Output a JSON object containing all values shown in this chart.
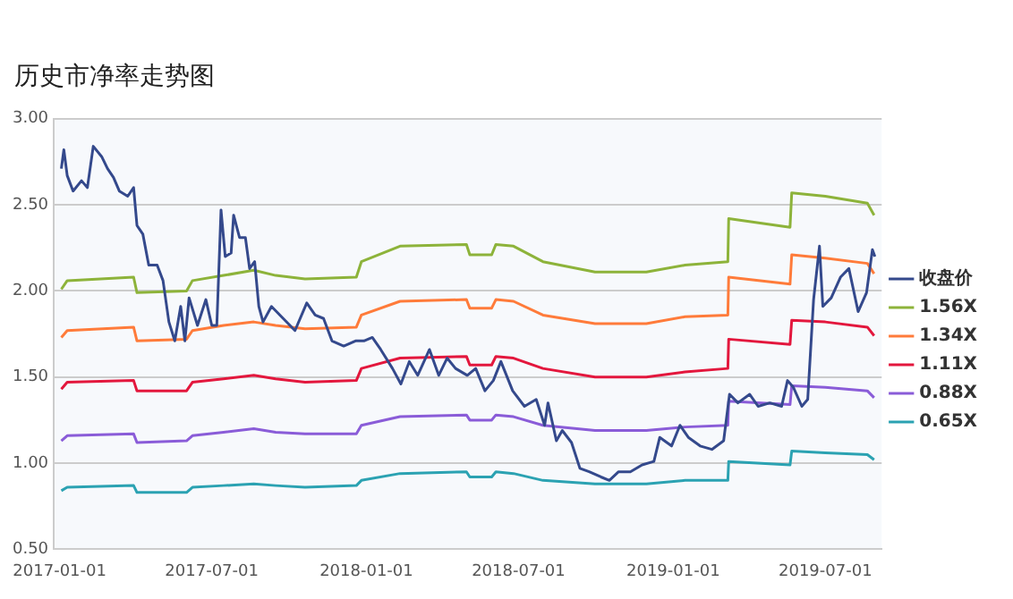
{
  "chart_data": {
    "type": "line",
    "title": "历史市净率走势图",
    "xlim": [
      "2016-12-25",
      "2019-09-06"
    ],
    "xticks": [
      "2017-01-01",
      "2017-07-01",
      "2018-01-01",
      "2018-07-01",
      "2019-01-01",
      "2019-07-01"
    ],
    "ylim": [
      0.5,
      3
    ],
    "yticks": [
      {
        "value": 0.5,
        "label": "0.50"
      },
      {
        "value": 1,
        "label": "1.00"
      },
      {
        "value": 1.5,
        "label": "1.50"
      },
      {
        "value": 2,
        "label": "2.00"
      },
      {
        "value": 2.5,
        "label": "2.50"
      },
      {
        "value": 3,
        "label": "3.00"
      }
    ],
    "grid": "y",
    "legend": "right",
    "marker": "none",
    "line_style": "solid",
    "series": [
      {
        "name": "收盘价",
        "color": "#34498c",
        "x": [
          "2017-01-03",
          "2017-01-06",
          "2017-01-10",
          "2017-01-17",
          "2017-01-27",
          "2017-02-03",
          "2017-02-10",
          "2017-02-20",
          "2017-02-27",
          "2017-03-06",
          "2017-03-13",
          "2017-03-23",
          "2017-03-30",
          "2017-04-03",
          "2017-04-10",
          "2017-04-17",
          "2017-04-27",
          "2017-05-04",
          "2017-05-11",
          "2017-05-18",
          "2017-05-25",
          "2017-05-30",
          "2017-06-04",
          "2017-06-14",
          "2017-06-24",
          "2017-07-01",
          "2017-07-07",
          "2017-07-12",
          "2017-07-17",
          "2017-07-24",
          "2017-07-27",
          "2017-08-03",
          "2017-08-10",
          "2017-08-15",
          "2017-08-21",
          "2017-08-26",
          "2017-08-31",
          "2017-09-10",
          "2017-09-24",
          "2017-10-08",
          "2017-10-22",
          "2017-11-01",
          "2017-11-11",
          "2017-11-21",
          "2017-12-05",
          "2017-12-19",
          "2017-12-29",
          "2018-01-08",
          "2018-01-18",
          "2018-02-01",
          "2018-02-11",
          "2018-02-21",
          "2018-03-03",
          "2018-03-17",
          "2018-03-28",
          "2018-04-07",
          "2018-04-17",
          "2018-05-01",
          "2018-05-11",
          "2018-05-22",
          "2018-06-01",
          "2018-06-10",
          "2018-06-24",
          "2018-07-08",
          "2018-07-22",
          "2018-08-01",
          "2018-08-05",
          "2018-08-15",
          "2018-08-22",
          "2018-09-02",
          "2018-09-12",
          "2018-09-23",
          "2018-10-07",
          "2018-10-17",
          "2018-10-28",
          "2018-11-11",
          "2018-11-25",
          "2018-12-09",
          "2018-12-16",
          "2018-12-30",
          "2019-01-09",
          "2019-01-19",
          "2019-02-02",
          "2019-02-16",
          "2019-03-02",
          "2019-03-09",
          "2019-03-19",
          "2019-04-02",
          "2019-04-12",
          "2019-04-26",
          "2019-05-10",
          "2019-05-17",
          "2019-05-24",
          "2019-06-03",
          "2019-06-10",
          "2019-06-17",
          "2019-06-24",
          "2019-06-28",
          "2019-07-08",
          "2019-07-19",
          "2019-07-29",
          "2019-08-09",
          "2019-08-19",
          "2019-08-26",
          "2019-08-29"
        ],
        "values": [
          2.71,
          2.82,
          2.67,
          2.58,
          2.64,
          2.6,
          2.84,
          2.78,
          2.71,
          2.66,
          2.58,
          2.55,
          2.6,
          2.38,
          2.33,
          2.15,
          2.15,
          2.06,
          1.82,
          1.71,
          1.91,
          1.71,
          1.96,
          1.8,
          1.95,
          1.8,
          1.8,
          2.47,
          2.2,
          2.22,
          2.44,
          2.31,
          2.31,
          2.13,
          2.17,
          1.91,
          1.82,
          1.91,
          1.84,
          1.77,
          1.93,
          1.86,
          1.84,
          1.71,
          1.68,
          1.71,
          1.71,
          1.73,
          1.66,
          1.55,
          1.46,
          1.59,
          1.51,
          1.66,
          1.51,
          1.61,
          1.55,
          1.51,
          1.55,
          1.42,
          1.48,
          1.59,
          1.42,
          1.33,
          1.37,
          1.22,
          1.35,
          1.13,
          1.19,
          1.12,
          0.97,
          0.95,
          0.92,
          0.9,
          0.95,
          0.95,
          0.99,
          1.01,
          1.15,
          1.1,
          1.22,
          1.15,
          1.1,
          1.08,
          1.13,
          1.4,
          1.35,
          1.4,
          1.33,
          1.35,
          1.33,
          1.48,
          1.44,
          1.33,
          1.37,
          1.95,
          2.26,
          1.91,
          1.96,
          2.08,
          2.13,
          1.88,
          1.99,
          2.24,
          2.2
        ]
      },
      {
        "name": "1.56X",
        "color": "#8db33a",
        "x": [
          "2017-01-03",
          "2017-01-10",
          "2017-03-30",
          "2017-04-03",
          "2017-06-01",
          "2017-06-08",
          "2017-07-15",
          "2017-08-20",
          "2017-09-15",
          "2017-10-20",
          "2017-12-20",
          "2017-12-26",
          "2018-02-10",
          "2018-04-30",
          "2018-05-04",
          "2018-05-30",
          "2018-06-04",
          "2018-06-25",
          "2018-07-30",
          "2018-09-30",
          "2018-11-30",
          "2019-01-15",
          "2019-03-07",
          "2019-03-08",
          "2019-05-20",
          "2019-05-22",
          "2019-07-01",
          "2019-08-20",
          "2019-08-28"
        ],
        "values": [
          2.01,
          2.06,
          2.08,
          1.99,
          2.0,
          2.06,
          2.09,
          2.12,
          2.09,
          2.07,
          2.08,
          2.17,
          2.26,
          2.27,
          2.21,
          2.21,
          2.27,
          2.26,
          2.17,
          2.11,
          2.11,
          2.15,
          2.17,
          2.42,
          2.37,
          2.57,
          2.55,
          2.51,
          2.44
        ]
      },
      {
        "name": "1.34X",
        "color": "#ff7b3a",
        "x": [
          "2017-01-03",
          "2017-01-10",
          "2017-03-30",
          "2017-04-03",
          "2017-06-01",
          "2017-06-08",
          "2017-07-15",
          "2017-08-20",
          "2017-09-15",
          "2017-10-20",
          "2017-12-20",
          "2017-12-26",
          "2018-02-10",
          "2018-04-30",
          "2018-05-04",
          "2018-05-30",
          "2018-06-04",
          "2018-06-25",
          "2018-07-30",
          "2018-09-30",
          "2018-11-30",
          "2019-01-15",
          "2019-03-07",
          "2019-03-08",
          "2019-05-20",
          "2019-05-22",
          "2019-07-01",
          "2019-08-20",
          "2019-08-28"
        ],
        "values": [
          1.73,
          1.77,
          1.79,
          1.71,
          1.72,
          1.77,
          1.8,
          1.82,
          1.8,
          1.78,
          1.79,
          1.86,
          1.94,
          1.95,
          1.9,
          1.9,
          1.95,
          1.94,
          1.86,
          1.81,
          1.81,
          1.85,
          1.86,
          2.08,
          2.04,
          2.21,
          2.19,
          2.16,
          2.1
        ]
      },
      {
        "name": "1.11X",
        "color": "#e3173d",
        "x": [
          "2017-01-03",
          "2017-01-10",
          "2017-03-30",
          "2017-04-03",
          "2017-06-01",
          "2017-06-08",
          "2017-07-15",
          "2017-08-20",
          "2017-09-15",
          "2017-10-20",
          "2017-12-20",
          "2017-12-26",
          "2018-02-10",
          "2018-04-30",
          "2018-05-04",
          "2018-05-30",
          "2018-06-04",
          "2018-06-25",
          "2018-07-30",
          "2018-09-30",
          "2018-11-30",
          "2019-01-15",
          "2019-03-07",
          "2019-03-08",
          "2019-05-20",
          "2019-05-22",
          "2019-07-01",
          "2019-08-20",
          "2019-08-28"
        ],
        "values": [
          1.43,
          1.47,
          1.48,
          1.42,
          1.42,
          1.47,
          1.49,
          1.51,
          1.49,
          1.47,
          1.48,
          1.55,
          1.61,
          1.62,
          1.57,
          1.57,
          1.62,
          1.61,
          1.55,
          1.5,
          1.5,
          1.53,
          1.55,
          1.72,
          1.69,
          1.83,
          1.82,
          1.79,
          1.74
        ]
      },
      {
        "name": "0.88X",
        "color": "#8a5cd8",
        "x": [
          "2017-01-03",
          "2017-01-10",
          "2017-03-30",
          "2017-04-03",
          "2017-06-01",
          "2017-06-08",
          "2017-07-15",
          "2017-08-20",
          "2017-09-15",
          "2017-10-20",
          "2017-12-20",
          "2017-12-26",
          "2018-02-10",
          "2018-04-30",
          "2018-05-04",
          "2018-05-30",
          "2018-06-04",
          "2018-06-25",
          "2018-07-30",
          "2018-09-30",
          "2018-11-30",
          "2019-01-15",
          "2019-03-07",
          "2019-03-08",
          "2019-05-20",
          "2019-05-22",
          "2019-07-01",
          "2019-08-20",
          "2019-08-28"
        ],
        "values": [
          1.13,
          1.16,
          1.17,
          1.12,
          1.13,
          1.16,
          1.18,
          1.2,
          1.18,
          1.17,
          1.17,
          1.22,
          1.27,
          1.28,
          1.25,
          1.25,
          1.28,
          1.27,
          1.22,
          1.19,
          1.19,
          1.21,
          1.22,
          1.36,
          1.34,
          1.45,
          1.44,
          1.42,
          1.38
        ]
      },
      {
        "name": "0.65X",
        "color": "#2ba2b2",
        "x": [
          "2017-01-03",
          "2017-01-10",
          "2017-03-30",
          "2017-04-03",
          "2017-06-01",
          "2017-06-08",
          "2017-07-15",
          "2017-08-20",
          "2017-09-15",
          "2017-10-20",
          "2017-12-20",
          "2017-12-26",
          "2018-02-10",
          "2018-04-30",
          "2018-05-04",
          "2018-05-30",
          "2018-06-04",
          "2018-06-25",
          "2018-07-30",
          "2018-09-30",
          "2018-11-30",
          "2019-01-15",
          "2019-03-07",
          "2019-03-08",
          "2019-05-20",
          "2019-05-22",
          "2019-07-01",
          "2019-08-20",
          "2019-08-28"
        ],
        "values": [
          0.84,
          0.86,
          0.87,
          0.83,
          0.83,
          0.86,
          0.87,
          0.88,
          0.87,
          0.86,
          0.87,
          0.9,
          0.94,
          0.95,
          0.92,
          0.92,
          0.95,
          0.94,
          0.9,
          0.88,
          0.88,
          0.9,
          0.9,
          1.01,
          0.99,
          1.07,
          1.06,
          1.05,
          1.02
        ]
      }
    ]
  }
}
